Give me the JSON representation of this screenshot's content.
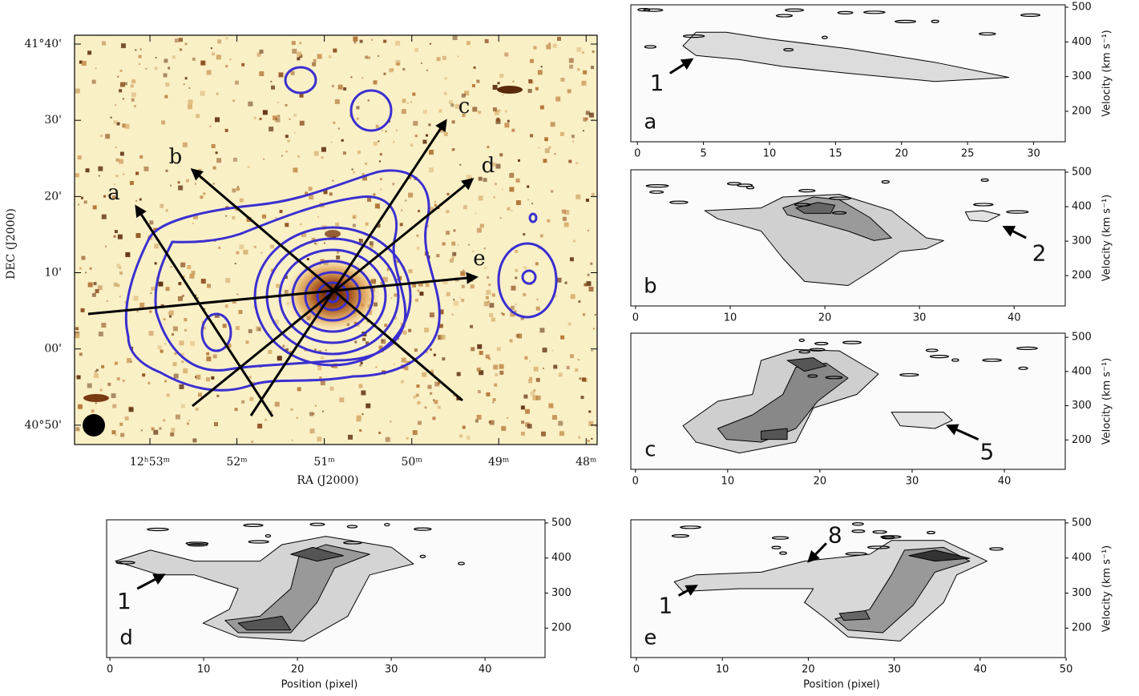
{
  "chart_data": [
    {
      "type": "map",
      "xlabel": "RA (J2000)",
      "ylabel": "DEC (J2000)",
      "xlim": [
        12.8977,
        12.7979
      ],
      "ylim": [
        40.791,
        41.686
      ],
      "xticks": [
        {
          "value": 12.8833,
          "label": "12ʰ53ᵐ"
        },
        {
          "value": 12.8667,
          "label": "52ᵐ"
        },
        {
          "value": 12.85,
          "label": "51ᵐ"
        },
        {
          "value": 12.8333,
          "label": "50ᵐ"
        },
        {
          "value": 12.8167,
          "label": "49ᵐ"
        },
        {
          "value": 12.8,
          "label": "48ᵐ"
        }
      ],
      "yticks": [
        {
          "value": 41.6667,
          "label": "41°40'"
        },
        {
          "value": 41.5,
          "label": "30'"
        },
        {
          "value": 41.3333,
          "label": "20'"
        },
        {
          "value": 41.1667,
          "label": "10'"
        },
        {
          "value": 41.0,
          "label": "00'"
        },
        {
          "value": 40.8333,
          "label": "40°50'"
        }
      ],
      "annotations": [
        "a",
        "b",
        "c",
        "d",
        "e"
      ]
    },
    {
      "type": "pv",
      "panel_label": "a",
      "annotations": [
        "1"
      ],
      "ylabel": "Velocity (km s⁻¹)",
      "xlim": [
        -0.5,
        32.4
      ],
      "ylim": [
        112,
        507
      ],
      "xticks": [
        0,
        5,
        10,
        15,
        20,
        25,
        30
      ],
      "yticks": [
        200,
        300,
        400,
        500
      ]
    },
    {
      "type": "pv",
      "panel_label": "b",
      "annotations": [
        "2"
      ],
      "ylabel": "Velocity (km s⁻¹)",
      "xlim": [
        -0.5,
        45.4
      ],
      "ylim": [
        112,
        507
      ],
      "xticks": [
        0,
        10,
        20,
        30,
        40
      ],
      "yticks": [
        200,
        300,
        400,
        500
      ]
    },
    {
      "type": "pv",
      "panel_label": "c",
      "annotations": [
        "5"
      ],
      "ylabel": "Velocity (km s⁻¹)",
      "xlim": [
        -0.5,
        46.6
      ],
      "ylim": [
        114,
        512
      ],
      "xticks": [
        0,
        10,
        20,
        30,
        40
      ],
      "yticks": [
        200,
        300,
        400,
        500
      ]
    },
    {
      "type": "pv",
      "panel_label": "d",
      "annotations": [
        "1"
      ],
      "xlabel": "Position (pixel)",
      "xlim": [
        -0.35,
        46.4
      ],
      "ylim": [
        116,
        509
      ],
      "xticks": [
        0,
        10,
        20,
        30,
        40
      ],
      "yticks": [
        200,
        300,
        400,
        500
      ]
    },
    {
      "type": "pv",
      "panel_label": "e",
      "annotations": [
        "8",
        "1"
      ],
      "xlabel": "Position (pixel)",
      "ylabel": "Velocity (km s⁻¹)",
      "xlim": [
        -0.65,
        49.9
      ],
      "ylim": [
        116,
        509
      ],
      "xticks": [
        0,
        10,
        20,
        30,
        40,
        50
      ],
      "yticks": [
        200,
        300,
        400,
        500
      ]
    }
  ]
}
